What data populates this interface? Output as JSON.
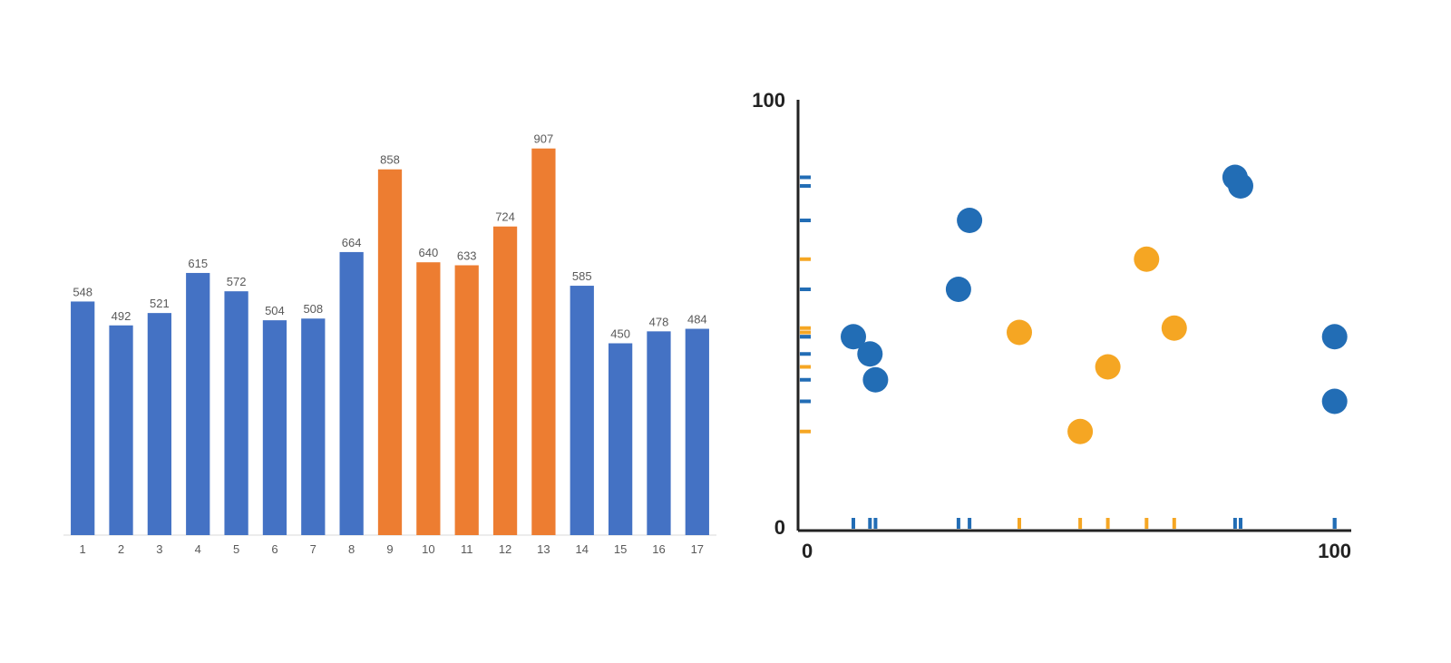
{
  "bar_chart": {
    "type": "bar",
    "categories": [
      "1",
      "2",
      "3",
      "4",
      "5",
      "6",
      "7",
      "8",
      "9",
      "10",
      "11",
      "12",
      "13",
      "14",
      "15",
      "16",
      "17"
    ],
    "values": [
      548,
      492,
      521,
      615,
      572,
      504,
      508,
      664,
      858,
      640,
      633,
      724,
      907,
      585,
      450,
      478,
      484
    ],
    "bar_colors": [
      "#4472c4",
      "#4472c4",
      "#4472c4",
      "#4472c4",
      "#4472c4",
      "#4472c4",
      "#4472c4",
      "#4472c4",
      "#ed7d31",
      "#ed7d31",
      "#ed7d31",
      "#ed7d31",
      "#ed7d31",
      "#4472c4",
      "#4472c4",
      "#4472c4",
      "#4472c4"
    ],
    "ymax": 1000,
    "value_label_fontsize": 13,
    "value_label_color": "#595959",
    "category_label_fontsize": 13,
    "category_label_color": "#595959",
    "background_color": "#ffffff",
    "axis_color": "#d9d9d9",
    "bar_width_ratio": 0.62
  },
  "scatter_chart": {
    "type": "scatter",
    "xlim": [
      0,
      100
    ],
    "ylim": [
      0,
      100
    ],
    "x_axis_label_start": "0",
    "x_axis_label_end": "100",
    "y_axis_label_start": "0",
    "y_axis_label_end": "100",
    "axis_label_fontsize": 22,
    "axis_label_color": "#222222",
    "axis_color": "#222222",
    "axis_width": 3,
    "marker_radius": 14,
    "background_color": "#ffffff",
    "points": [
      {
        "x": 10,
        "y": 45,
        "color": "#226db5"
      },
      {
        "x": 13,
        "y": 41,
        "color": "#226db5"
      },
      {
        "x": 14,
        "y": 35,
        "color": "#226db5"
      },
      {
        "x": 29,
        "y": 56,
        "color": "#226db5"
      },
      {
        "x": 31,
        "y": 72,
        "color": "#226db5"
      },
      {
        "x": 40,
        "y": 46,
        "color": "#f5a623"
      },
      {
        "x": 51,
        "y": 23,
        "color": "#f5a623"
      },
      {
        "x": 56,
        "y": 38,
        "color": "#f5a623"
      },
      {
        "x": 63,
        "y": 63,
        "color": "#f5a623"
      },
      {
        "x": 68,
        "y": 47,
        "color": "#f5a623"
      },
      {
        "x": 79,
        "y": 82,
        "color": "#226db5"
      },
      {
        "x": 80,
        "y": 80,
        "color": "#226db5"
      },
      {
        "x": 97,
        "y": 45,
        "color": "#226db5"
      },
      {
        "x": 97,
        "y": 30,
        "color": "#226db5"
      }
    ],
    "rug_tick_length": 12,
    "rug_tick_width": 4
  }
}
